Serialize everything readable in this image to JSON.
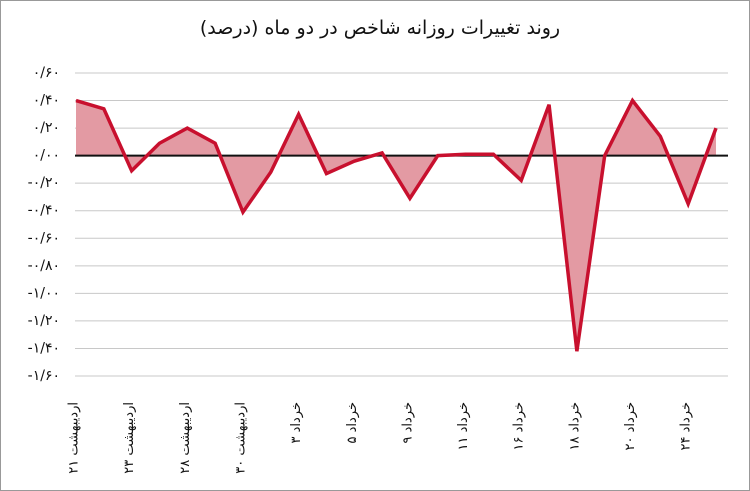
{
  "chart_data": {
    "type": "area",
    "title": "روند تغییرات روزانه شاخص در دو ماه (درصد)",
    "categories": [
      "اردیبهشت ۲۱",
      null,
      "اردیبهشت ۲۳",
      null,
      "اردیبهشت ۲۸",
      null,
      "اردیبهشت ۳۰",
      null,
      "خرداد ۳",
      null,
      "خرداد ۵",
      null,
      "خرداد ۹",
      null,
      "خرداد ۱۱",
      null,
      "خرداد ۱۶",
      null,
      "خرداد ۱۸",
      null,
      "خرداد ۲۰",
      null,
      "خرداد ۲۴",
      null
    ],
    "values": [
      0.4,
      0.34,
      -0.11,
      0.09,
      0.2,
      0.09,
      -0.41,
      -0.12,
      0.3,
      -0.13,
      -0.04,
      0.02,
      -0.31,
      0.0,
      0.01,
      0.01,
      -0.18,
      0.37,
      -1.42,
      0.0,
      0.4,
      0.14,
      -0.35,
      0.2
    ],
    "color": "#c8102e",
    "fill_color": "#e39aa3",
    "ylim": [
      -1.6,
      0.6
    ],
    "yticks": [
      {
        "value": 0.6,
        "label": "۰/۶۰"
      },
      {
        "value": 0.4,
        "label": "۰/۴۰"
      },
      {
        "value": 0.2,
        "label": "۰/۲۰"
      },
      {
        "value": 0,
        "label": "۰/۰۰"
      },
      {
        "value": -0.2,
        "label": "-۰/۲۰"
      },
      {
        "value": -0.4,
        "label": "-۰/۴۰"
      },
      {
        "value": -0.6,
        "label": "-۰/۶۰"
      },
      {
        "value": -0.8,
        "label": "-۰/۸۰"
      },
      {
        "value": -1,
        "label": "-۱/۰۰"
      },
      {
        "value": -1.2,
        "label": "-۱/۲۰"
      },
      {
        "value": -1.4,
        "label": "-۱/۴۰"
      },
      {
        "value": -1.6,
        "label": "-۱/۶۰"
      }
    ],
    "grid": true
  }
}
